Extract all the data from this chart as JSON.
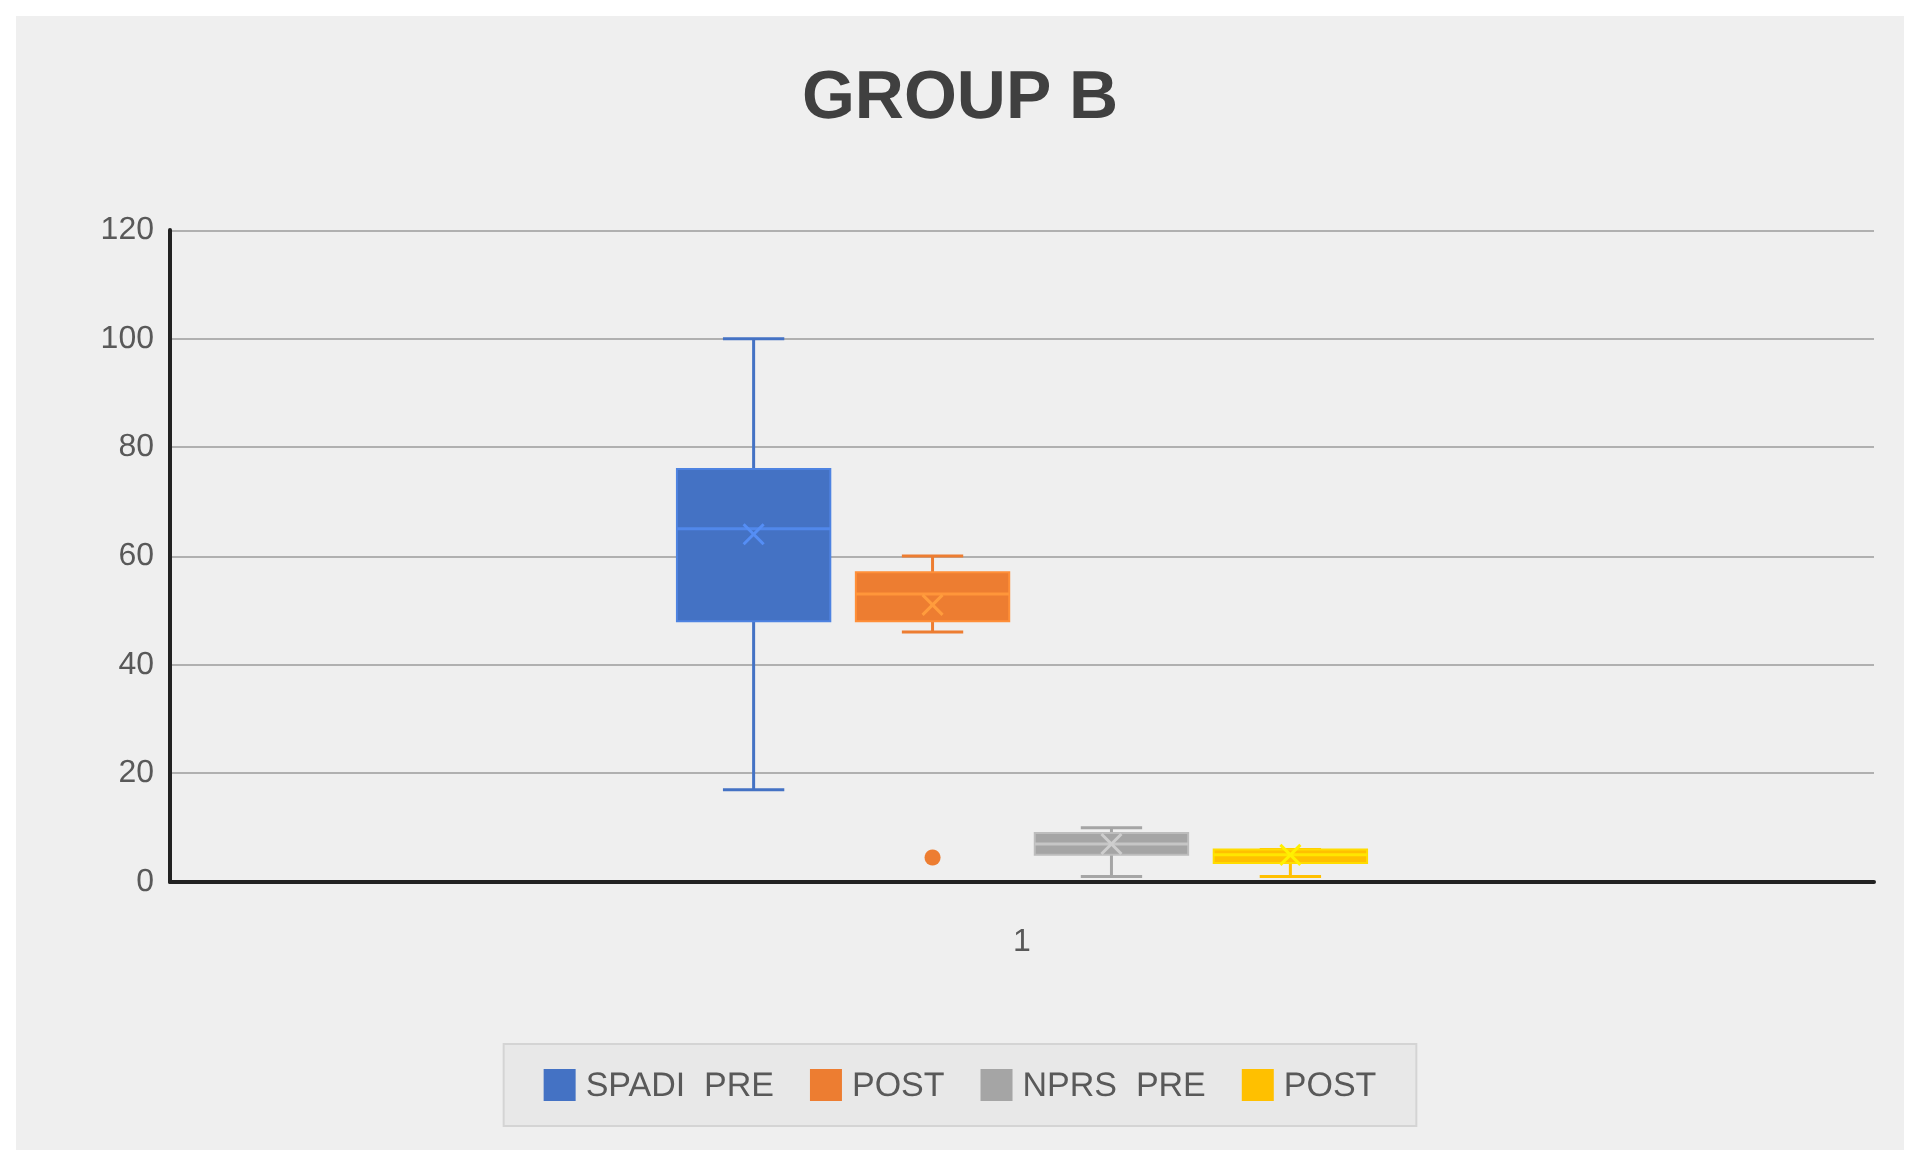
{
  "chart_data": {
    "type": "box",
    "title": "GROUP B",
    "categories": [
      "1"
    ],
    "ylim": [
      0,
      120
    ],
    "yticks": [
      0,
      20,
      40,
      60,
      80,
      100,
      120
    ],
    "grid": "y",
    "legend": "bottom",
    "series": [
      {
        "name": "SPADI  PRE",
        "color": "#4472c4",
        "boxes": [
          {
            "low": 17,
            "q1": 48,
            "median": 65,
            "q3": 76,
            "high": 100,
            "mean": 64
          }
        ]
      },
      {
        "name": "POST",
        "color": "#ed7d31",
        "boxes": [
          {
            "low": 46,
            "q1": 48,
            "median": 53,
            "q3": 57,
            "high": 60,
            "mean": 51,
            "outliers": [
              4.5
            ]
          }
        ]
      },
      {
        "name": "NPRS  PRE",
        "color": "#a5a5a5",
        "boxes": [
          {
            "low": 1,
            "q1": 5,
            "median": 7,
            "q3": 9,
            "high": 10,
            "mean": 7
          }
        ]
      },
      {
        "name": "POST",
        "color": "#ffc000",
        "boxes": [
          {
            "low": 1,
            "q1": 3.5,
            "median": 5,
            "q3": 6,
            "high": 6,
            "mean": 5
          }
        ]
      }
    ]
  }
}
